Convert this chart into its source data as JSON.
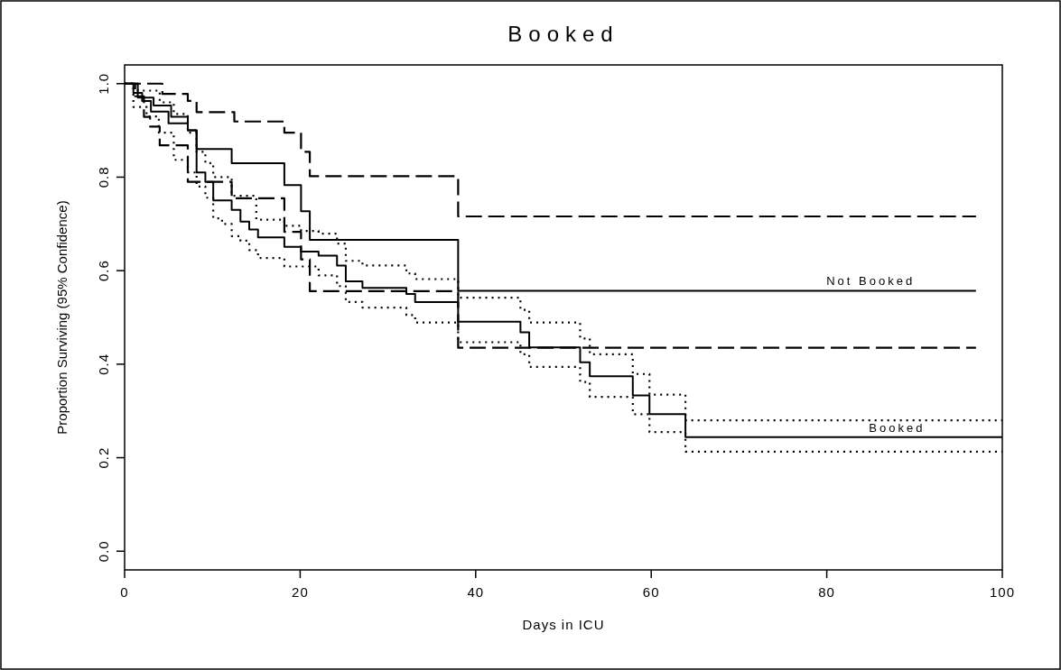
{
  "chart_data": {
    "type": "step",
    "title": "Booked",
    "xlabel": "Days in ICU",
    "ylabel": "Proportion Surviving (95% Confidence)",
    "xlim": [
      0,
      100
    ],
    "xticks": [
      0,
      20,
      40,
      60,
      80,
      100
    ],
    "ylim": [
      -0.04,
      1.04
    ],
    "yticks": [
      {
        "value": 0,
        "label": "0.0"
      },
      {
        "value": 0.2,
        "label": "0.2"
      },
      {
        "value": 0.4,
        "label": "0.4"
      },
      {
        "value": 0.6,
        "label": "0.6"
      },
      {
        "value": 0.8,
        "label": "0.8"
      },
      {
        "value": 1,
        "label": "1.0"
      }
    ],
    "series": [
      {
        "name": "Not Booked",
        "color": "#000000",
        "line_style": "solid",
        "x": [
          0,
          1.5,
          3.3,
          5.3,
          7.2,
          8.2,
          12.2,
          18.2,
          20.1,
          21.1,
          38,
          97
        ],
        "values": [
          1,
          0.97,
          0.953,
          0.929,
          0.9,
          0.86,
          0.83,
          0.783,
          0.727,
          0.666,
          0.557,
          0.557
        ]
      },
      {
        "color": "#000000",
        "line_style": "dashed",
        "x": [
          0,
          4.3,
          7.2,
          8.2,
          12.5,
          18.2,
          20.1,
          21.1,
          38,
          97
        ],
        "values": [
          1,
          0.978,
          0.963,
          0.939,
          0.919,
          0.895,
          0.854,
          0.802,
          0.716,
          0.716
        ]
      },
      {
        "color": "#000000",
        "line_style": "dashed",
        "x": [
          0,
          1.2,
          2.2,
          2.9,
          4,
          7.2,
          12.2,
          18.2,
          20.1,
          21.1,
          38,
          97
        ],
        "values": [
          1,
          0.973,
          0.929,
          0.908,
          0.868,
          0.79,
          0.755,
          0.683,
          0.624,
          0.556,
          0.435,
          0.435
        ]
      },
      {
        "name": "Booked",
        "color": "#000000",
        "line_style": "solid",
        "x": [
          0,
          1,
          2,
          3,
          5,
          7.2,
          8.2,
          9.2,
          10.1,
          12.2,
          13.2,
          14.2,
          15.2,
          18.2,
          20.1,
          22.1,
          24.2,
          25.2,
          27.1,
          32.1,
          33.1,
          38,
          45.1,
          46.1,
          51.9,
          53,
          57.9,
          59.8,
          63.9,
          100
        ],
        "values": [
          1,
          0.98,
          0.963,
          0.94,
          0.915,
          0.9,
          0.81,
          0.79,
          0.75,
          0.73,
          0.705,
          0.688,
          0.671,
          0.651,
          0.641,
          0.632,
          0.611,
          0.577,
          0.563,
          0.55,
          0.533,
          0.491,
          0.468,
          0.436,
          0.404,
          0.374,
          0.333,
          0.293,
          0.244,
          0.244
        ]
      },
      {
        "color": "#000000",
        "line_style": "dotted",
        "x": [
          0,
          1.5,
          4,
          5.6,
          7.2,
          8.2,
          9.2,
          10.1,
          12.2,
          15,
          18.2,
          20.1,
          22.1,
          24.2,
          25.2,
          27.1,
          32.1,
          33.1,
          38,
          45.1,
          46.1,
          51.9,
          53,
          57.9,
          59.8,
          63.9,
          100
        ],
        "values": [
          1,
          0.985,
          0.96,
          0.935,
          0.895,
          0.854,
          0.83,
          0.8,
          0.76,
          0.709,
          0.696,
          0.685,
          0.679,
          0.658,
          0.621,
          0.611,
          0.594,
          0.582,
          0.542,
          0.516,
          0.489,
          0.455,
          0.421,
          0.379,
          0.335,
          0.28,
          0.28
        ]
      },
      {
        "color": "#000000",
        "line_style": "dotted",
        "x": [
          0,
          1,
          2.5,
          3.9,
          5.6,
          7.2,
          8.2,
          9.2,
          10.1,
          11.1,
          12.2,
          13.2,
          14.2,
          15.2,
          18.2,
          22.1,
          24.2,
          25.2,
          27.1,
          32.1,
          33.1,
          38,
          45.1,
          46.1,
          51.9,
          53,
          57.9,
          59.8,
          63.9,
          100
        ],
        "values": [
          1,
          0.95,
          0.93,
          0.895,
          0.837,
          0.81,
          0.78,
          0.756,
          0.712,
          0.7,
          0.674,
          0.664,
          0.644,
          0.627,
          0.609,
          0.59,
          0.567,
          0.533,
          0.521,
          0.505,
          0.489,
          0.447,
          0.421,
          0.394,
          0.362,
          0.33,
          0.293,
          0.255,
          0.213,
          0.213
        ]
      }
    ]
  }
}
